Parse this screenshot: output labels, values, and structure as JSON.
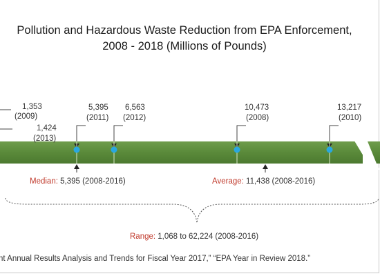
{
  "chart_data": {
    "type": "timeline",
    "title_line1": "Pollution and Hazardous Waste Reduction from EPA Enforcement,",
    "title_line2": "2008 - 2018 (Millions of Pounds)",
    "points": [
      {
        "value": "1,353",
        "year": "(2009)"
      },
      {
        "value": "1,424",
        "year": "(2013)"
      },
      {
        "value": "5,395",
        "year": "(2011)"
      },
      {
        "value": "6,563",
        "year": "(2012)"
      },
      {
        "value": "10,473",
        "year": "(2008)"
      },
      {
        "value": "13,217",
        "year": "(2010)"
      }
    ],
    "median": {
      "label": "Median:",
      "text": " 5,395 (2008-2016)"
    },
    "average": {
      "label": "Average:",
      "text": " 11,438 (2008-2016)"
    },
    "range": {
      "label": "Range:",
      "text": " 1,068 to 62,224 (2008-2016)"
    },
    "colors": {
      "band": "#5a8a3a",
      "marker": "#29a8e0",
      "key_label": "#c0392b"
    }
  },
  "source": "nt Annual Results Analysis and Trends for Fiscal Year 2017,” “EPA Year in Review 2018.”"
}
